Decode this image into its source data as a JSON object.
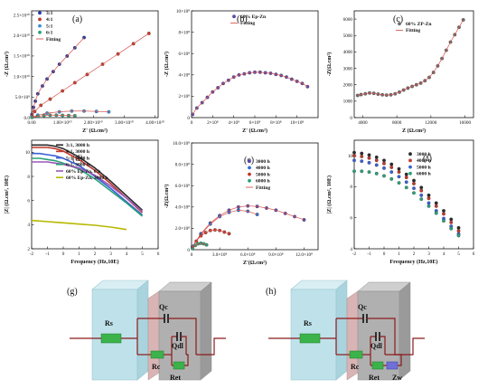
{
  "panel_labels": [
    "(a)",
    "(b)",
    "(c)",
    "(d)",
    "(e)",
    "(f)",
    "(g)",
    "(h)"
  ],
  "chart_data": [
    {
      "panel": "(a)",
      "type": "scatter",
      "xlabel": "Z' (Ω.cm²)",
      "ylabel": "-Z (Ω.cm²)",
      "xlim": [
        0,
        41000000000.0
      ],
      "ylim": [
        0,
        26000000000.0
      ],
      "xticks": [
        0,
        10000000000.0,
        20000000000.0,
        30000000000.0,
        40000000000.0
      ],
      "xtick_labels": [
        "0.00",
        "1.00×10¹⁰",
        "2.00×10¹⁰",
        "3.00×10¹⁰",
        "4.00×10¹⁰"
      ],
      "yticks": [
        0,
        5000000000.0,
        10000000000.0,
        15000000000.0,
        20000000000.0,
        25000000000.0
      ],
      "ytick_labels": [
        "0.0",
        "5.0×10⁹",
        "1.0×10¹⁰",
        "1.5×10¹⁰",
        "2.0×10¹⁰",
        "2.5×10¹⁰"
      ],
      "legend": [
        "3:1",
        "4:1",
        "5:1",
        "6:1",
        "Fitting"
      ],
      "series": [
        {
          "name": "3:1",
          "color": "#1f3aa8",
          "x": [
            100000000.0,
            600000000.0,
            1200000000.0,
            2000000000.0,
            3500000000.0,
            5000000000.0,
            7000000000.0,
            9000000000.0,
            11500000000.0,
            14000000000.0,
            17000000000.0
          ],
          "y": [
            800000000.0,
            2500000000.0,
            4000000000.0,
            5800000000.0,
            7700000000.0,
            9400000000.0,
            11200000000.0,
            13000000000.0,
            15000000000.0,
            17000000000.0,
            19500000000.0
          ]
        },
        {
          "name": "4:1",
          "color": "#c0392b",
          "x": [
            100000000.0,
            1000000000.0,
            3000000000.0,
            6000000000.0,
            10000000000.0,
            14000000000.0,
            18000000000.0,
            23000000000.0,
            28000000000.0,
            33000000000.0,
            38000000000.0
          ],
          "y": [
            400000000.0,
            1500000000.0,
            3000000000.0,
            4500000000.0,
            6500000000.0,
            8500000000.0,
            10500000000.0,
            13000000000.0,
            15500000000.0,
            18000000000.0,
            20500000000.0
          ]
        },
        {
          "name": "5:1",
          "color": "#3a8fd6",
          "x": [
            100000000.0,
            2000000000.0,
            5000000000.0,
            9000000000.0,
            13000000000.0,
            17000000000.0,
            21000000000.0,
            25000000000.0
          ],
          "y": [
            100000000.0,
            600000000.0,
            1100000000.0,
            1400000000.0,
            1600000000.0,
            1600000000.0,
            1500000000.0,
            1400000000.0
          ]
        },
        {
          "name": "6:1",
          "color": "#2aa07a",
          "x": [
            100000000.0,
            2000000000.0,
            4000000000.0,
            6000000000.0,
            8000000000.0,
            10000000000.0,
            12000000000.0,
            14000000000.0
          ],
          "y": [
            50000000.0,
            300000000.0,
            500000000.0,
            600000000.0,
            600000000.0,
            550000000.0,
            500000000.0,
            450000000.0
          ]
        }
      ]
    },
    {
      "panel": "(b)",
      "type": "scatter",
      "xlabel": "Z' (Ω.cm²)",
      "ylabel": "-Z (Ω.cm²)",
      "xlim": [
        0,
        1200000000.0
      ],
      "ylim": [
        0,
        1000000000.0
      ],
      "xticks": [
        0,
        200000000.0,
        400000000.0,
        600000000.0,
        800000000.0,
        1000000000.0
      ],
      "xtick_labels": [
        "0",
        "2×10⁸",
        "4×10⁸",
        "6×10⁸",
        "8×10⁸",
        "10×10⁸"
      ],
      "yticks": [
        0,
        200000000.0,
        400000000.0,
        600000000.0,
        800000000.0,
        1000000000.0
      ],
      "ytick_labels": [
        "0",
        "2×10⁸",
        "4×10⁸",
        "6×10⁸",
        "8×10⁸",
        "10×10⁸"
      ],
      "legend": [
        "60% Ep-Zn",
        "Fitting"
      ],
      "series": [
        {
          "name": "60% Ep-Zn",
          "color": "#5b4aa8",
          "x": [
            10000000.0,
            50000000.0,
            100000000.0,
            150000000.0,
            200000000.0,
            250000000.0,
            300000000.0,
            350000000.0,
            400000000.0,
            450000000.0,
            500000000.0,
            550000000.0,
            600000000.0,
            650000000.0,
            700000000.0,
            750000000.0,
            800000000.0,
            850000000.0,
            900000000.0,
            950000000.0,
            1000000000.0,
            1050000000.0,
            1100000000.0
          ],
          "y": [
            30000000.0,
            90000000.0,
            140000000.0,
            190000000.0,
            240000000.0,
            280000000.0,
            320000000.0,
            350000000.0,
            380000000.0,
            400000000.0,
            410000000.0,
            420000000.0,
            425000000.0,
            425000000.0,
            420000000.0,
            415000000.0,
            405000000.0,
            395000000.0,
            380000000.0,
            360000000.0,
            340000000.0,
            320000000.0,
            290000000.0
          ]
        }
      ]
    },
    {
      "panel": "(c)",
      "type": "scatter",
      "xlabel": "Z (Ω.cm²)",
      "ylabel": "-Z(Ω.cm²)",
      "xlim": [
        3000,
        17000
      ],
      "ylim": [
        0,
        6500
      ],
      "xticks": [
        4000,
        8000,
        12000,
        16000
      ],
      "xtick_labels": [
        "4000",
        "8000",
        "12000",
        "16000"
      ],
      "yticks": [
        0,
        1000,
        2000,
        3000,
        4000,
        5000,
        6000
      ],
      "ytick_labels": [
        "0",
        "1000",
        "2000",
        "3000",
        "4000",
        "5000",
        "6000"
      ],
      "legend": [
        "60% ZP-Zn",
        "Fitting"
      ],
      "series": [
        {
          "name": "60% ZP-Zn",
          "color": "#6b6b6b",
          "x": [
            3400,
            3800,
            4300,
            4800,
            5300,
            5800,
            6300,
            6800,
            7300,
            7800,
            8300,
            8800,
            9300,
            9800,
            10300,
            10800,
            11300,
            11800,
            12300,
            12800,
            13300,
            13800,
            14300,
            14800,
            15300,
            15800
          ],
          "y": [
            1350,
            1400,
            1450,
            1500,
            1480,
            1430,
            1390,
            1370,
            1390,
            1450,
            1550,
            1680,
            1800,
            1900,
            2000,
            2100,
            2250,
            2450,
            2750,
            3150,
            3600,
            4100,
            4600,
            5050,
            5500,
            5950
          ]
        }
      ]
    },
    {
      "panel": "(d)",
      "type": "line",
      "xlabel": "Frequency (Hz,10E)",
      "ylabel": "|Z| (Ω.cm², 10E)",
      "xlim": [
        -2,
        6
      ],
      "ylim": [
        2,
        11
      ],
      "xticks": [
        -2,
        -1,
        0,
        1,
        2,
        3,
        4,
        5,
        6
      ],
      "yticks": [
        2,
        4,
        6,
        8,
        10
      ],
      "legend": [
        "3:1, 3000 h",
        "4:1, 3000 h",
        "5:1, 3000 h",
        "6:1, 3000 h",
        "60% Ep-Zn, 0 h",
        "60% Ep-Zn, 3000 h"
      ],
      "series": [
        {
          "name": "3:1, 3000 h",
          "color": "#2b2b2b",
          "x": [
            -2,
            -1.5,
            -1,
            -0.5,
            0,
            1,
            2,
            3,
            4,
            5
          ],
          "y": [
            10.6,
            10.6,
            10.6,
            10.5,
            10.3,
            9.6,
            8.7,
            7.6,
            6.4,
            5.2
          ]
        },
        {
          "name": "4:1, 3000 h",
          "color": "#c0392b",
          "x": [
            -2,
            -1.5,
            -1,
            -0.5,
            0,
            1,
            2,
            3,
            4,
            5
          ],
          "y": [
            10.4,
            10.4,
            10.4,
            10.3,
            10.1,
            9.4,
            8.5,
            7.4,
            6.2,
            5.0
          ]
        },
        {
          "name": "5:1, 3000 h",
          "color": "#3a5fd6",
          "x": [
            -2,
            -1.5,
            -1,
            -0.5,
            0,
            1,
            2,
            3,
            4,
            5
          ],
          "y": [
            9.9,
            9.9,
            9.8,
            9.7,
            9.5,
            8.9,
            8.0,
            7.0,
            5.9,
            4.8
          ]
        },
        {
          "name": "6:1, 3000 h",
          "color": "#2aa07a",
          "x": [
            -2,
            -1.5,
            -1,
            -0.5,
            0,
            1,
            2,
            3,
            4,
            5
          ],
          "y": [
            9.5,
            9.5,
            9.4,
            9.3,
            9.1,
            8.6,
            7.8,
            6.8,
            5.8,
            4.7
          ]
        },
        {
          "name": "60% Ep-Zn, 0 h",
          "color": "#9b59b6",
          "x": [
            -2,
            -1.5,
            -1,
            -0.5,
            0,
            1,
            2,
            3,
            4,
            5
          ],
          "y": [
            9.2,
            9.2,
            9.2,
            9.1,
            9.0,
            8.7,
            8.1,
            7.2,
            6.2,
            5.1
          ]
        },
        {
          "name": "60% Ep-Zn, 3000 h",
          "color": "#b8b800",
          "x": [
            -2,
            -1.5,
            -1,
            -0.5,
            0,
            1,
            2,
            3,
            4
          ],
          "y": [
            4.35,
            4.3,
            4.25,
            4.2,
            4.15,
            4.05,
            3.95,
            3.8,
            3.6
          ]
        }
      ]
    },
    {
      "panel": "(e)",
      "type": "scatter",
      "xlabel": "Z'(Ω.cm²)",
      "ylabel": "-Z(Ω.cm²)",
      "xlim": [
        0,
        1350000000.0
      ],
      "ylim": [
        0,
        1000000000.0
      ],
      "xticks": [
        0,
        300000000.0,
        600000000.0,
        900000000.0,
        1200000000.0
      ],
      "xtick_labels": [
        "0",
        "3.0×10⁸",
        "6.0×10⁸",
        "9.0×10⁸",
        "12.0×10⁸"
      ],
      "yticks": [
        0,
        200000000.0,
        400000000.0,
        600000000.0,
        800000000.0,
        1000000000.0
      ],
      "ytick_labels": [
        "0",
        "2.0×10⁸",
        "4.0×10⁸",
        "6.0×10⁸",
        "8.0×10⁸",
        "10.0×10⁸"
      ],
      "legend": [
        "3000 h",
        "4000 h",
        "5000 h",
        "6000 h",
        "Fitting"
      ],
      "series": [
        {
          "name": "3000 h",
          "color": "#5b4aa8",
          "x": [
            10000000.0,
            100000000.0,
            200000000.0,
            300000000.0,
            400000000.0,
            500000000.0,
            600000000.0,
            700000000.0,
            800000000.0,
            900000000.0,
            1000000000.0,
            1100000000.0,
            1200000000.0
          ],
          "y": [
            30000000.0,
            150000000.0,
            250000000.0,
            320000000.0,
            370000000.0,
            400000000.0,
            410000000.0,
            405000000.0,
            390000000.0,
            370000000.0,
            340000000.0,
            310000000.0,
            280000000.0
          ]
        },
        {
          "name": "4000 h",
          "color": "#2b6fd6",
          "x": [
            10000000.0,
            100000000.0,
            200000000.0,
            300000000.0,
            400000000.0,
            500000000.0,
            600000000.0,
            700000000.0
          ],
          "y": [
            30000000.0,
            140000000.0,
            240000000.0,
            310000000.0,
            350000000.0,
            370000000.0,
            360000000.0,
            330000000.0
          ]
        },
        {
          "name": "5000 h",
          "color": "#c0392b",
          "x": [
            10000000.0,
            50000000.0,
            100000000.0,
            150000000.0,
            200000000.0,
            250000000.0,
            300000000.0,
            350000000.0,
            400000000.0
          ],
          "y": [
            20000000.0,
            80000000.0,
            130000000.0,
            160000000.0,
            180000000.0,
            185000000.0,
            180000000.0,
            165000000.0,
            150000000.0
          ]
        },
        {
          "name": "6000 h",
          "color": "#2aa07a",
          "x": [
            10000000.0,
            40000000.0,
            70000000.0,
            100000000.0,
            130000000.0,
            160000000.0
          ],
          "y": [
            10000000.0,
            40000000.0,
            55000000.0,
            60000000.0,
            55000000.0,
            45000000.0
          ]
        }
      ]
    },
    {
      "panel": "(f)",
      "type": "scatter",
      "xlabel": "Frequency (Hz,10E)",
      "ylabel": "|Z| (Ω.cm², 10E)",
      "xlim": [
        -2,
        6
      ],
      "ylim": [
        4,
        11
      ],
      "xticks": [
        -2,
        -1,
        0,
        1,
        2,
        3,
        4,
        5,
        6
      ],
      "yticks": [
        4,
        6,
        8,
        10
      ],
      "legend": [
        "3000 h",
        "4000 h",
        "5000 h",
        "6000 h"
      ],
      "series": [
        {
          "name": "3000 h",
          "color": "#2b2b2b",
          "x": [
            -2,
            -1.5,
            -1,
            -0.5,
            0,
            0.5,
            1,
            1.5,
            2,
            2.5,
            3,
            3.5,
            4,
            4.5,
            5
          ],
          "y": [
            10.2,
            10.15,
            10.05,
            9.9,
            9.7,
            9.45,
            9.15,
            8.8,
            8.4,
            7.95,
            7.45,
            6.95,
            6.45,
            5.9,
            5.35
          ]
        },
        {
          "name": "4000 h",
          "color": "#c0392b",
          "x": [
            -2,
            -1.5,
            -1,
            -0.5,
            0,
            0.5,
            1,
            1.5,
            2,
            2.5,
            3,
            3.5,
            4,
            4.5,
            5
          ],
          "y": [
            10.0,
            9.95,
            9.85,
            9.7,
            9.5,
            9.25,
            8.95,
            8.6,
            8.2,
            7.75,
            7.25,
            6.75,
            6.25,
            5.7,
            5.15
          ]
        },
        {
          "name": "5000 h",
          "color": "#3a5fd6",
          "x": [
            -2,
            -1.5,
            -1,
            -0.5,
            0,
            0.5,
            1,
            1.5,
            2,
            2.5,
            3,
            3.5,
            4,
            4.5,
            5
          ],
          "y": [
            9.7,
            9.65,
            9.55,
            9.4,
            9.2,
            8.95,
            8.65,
            8.3,
            7.9,
            7.45,
            6.95,
            6.45,
            5.95,
            5.45,
            4.95
          ]
        },
        {
          "name": "6000 h",
          "color": "#2aa07a",
          "x": [
            -2,
            -1.5,
            -1,
            -0.5,
            0,
            0.5,
            1,
            1.5,
            2,
            2.5,
            3,
            3.5,
            4,
            4.5,
            5
          ],
          "y": [
            9.0,
            9.0,
            8.95,
            8.85,
            8.7,
            8.5,
            8.25,
            7.95,
            7.6,
            7.2,
            6.75,
            6.3,
            5.8,
            5.3,
            4.85
          ]
        }
      ]
    }
  ],
  "circuits": [
    {
      "panel": "(g)",
      "labels": [
        "Rs",
        "Qc",
        "Qdl",
        "Rc",
        "Ret"
      ]
    },
    {
      "panel": "(h)",
      "labels": [
        "Rs",
        "Qc",
        "Qdl",
        "Rc",
        "Ret",
        "Zw"
      ]
    }
  ],
  "colors": {
    "fit_line": "#d9534f",
    "circuit_block": "#bfe2ea",
    "circuit_metal": "#b0b0b0",
    "resistor": "#3bb34a",
    "warburg": "#6f6fd8",
    "wire": "#8b1a1a"
  }
}
